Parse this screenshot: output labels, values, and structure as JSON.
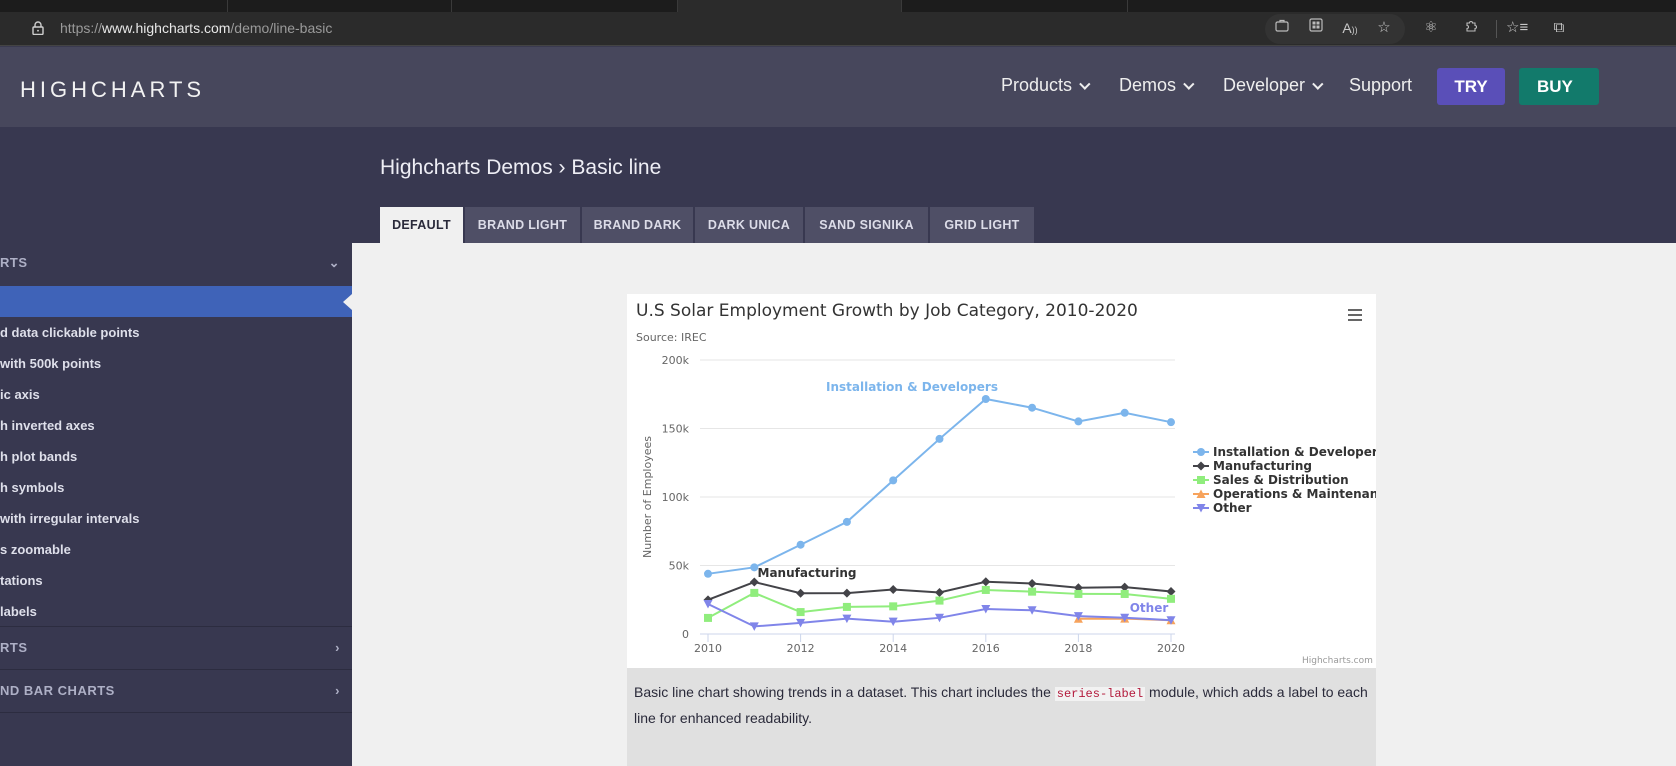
{
  "browser": {
    "url_scheme": "https://",
    "url_host": "www.highcharts.com",
    "url_path": "/demo/line-basic",
    "toolbar_icons": [
      "briefcase-icon",
      "app-grid-icon",
      "read-aloud-icon",
      "add-favorite-icon",
      "atom-icon",
      "extensions-icon",
      "favorites-icon",
      "collections-icon"
    ]
  },
  "header": {
    "logo": "HIGHCHARTS",
    "nav": [
      {
        "label": "Products",
        "has_dropdown": true
      },
      {
        "label": "Demos",
        "has_dropdown": true
      },
      {
        "label": "Developer",
        "has_dropdown": true
      },
      {
        "label": "Support",
        "has_dropdown": false
      }
    ],
    "try_label": "TRY",
    "buy_label": "BUY"
  },
  "sidebar": {
    "sections": [
      {
        "label": "RTS",
        "state": "expanded",
        "arrow": "⌄"
      },
      {
        "label": "RTS",
        "state": "collapsed",
        "arrow": "›"
      },
      {
        "label": "ND BAR CHARTS",
        "state": "collapsed",
        "arrow": "›"
      }
    ],
    "items": [
      {
        "label": "",
        "active": true
      },
      {
        "label": "d data clickable points"
      },
      {
        "label": " with 500k points"
      },
      {
        "label": "ic axis"
      },
      {
        "label": "h inverted axes"
      },
      {
        "label": "h plot bands"
      },
      {
        "label": "h symbols"
      },
      {
        "label": " with irregular intervals"
      },
      {
        "label": "s zoomable"
      },
      {
        "label": "tations"
      },
      {
        "label": "labels"
      }
    ]
  },
  "main": {
    "title": "Highcharts Demos › Basic line",
    "theme_tabs": [
      {
        "label": "DEFAULT",
        "active": true
      },
      {
        "label": "BRAND LIGHT"
      },
      {
        "label": "BRAND DARK"
      },
      {
        "label": "DARK UNICA"
      },
      {
        "label": "SAND SIGNIKA"
      },
      {
        "label": "GRID LIGHT"
      }
    ],
    "description_before": "Basic line chart showing trends in a dataset. This chart includes the ",
    "description_code": "series-label",
    "description_after": " module, which adds a label to each line for enhanced readability.",
    "credits": "Highcharts.com"
  },
  "chart_data": {
    "type": "line",
    "title": "U.S Solar Employment Growth by Job Category, 2010-2020",
    "subtitle": "Source: IREC",
    "xlabel": "",
    "ylabel": "Number of Employees",
    "x": [
      2010,
      2011,
      2012,
      2013,
      2014,
      2015,
      2016,
      2017,
      2018,
      2019,
      2020
    ],
    "x_ticks": [
      "2010",
      "2012",
      "2014",
      "2016",
      "2018",
      "2020"
    ],
    "y_ticks": [
      "0",
      "50k",
      "100k",
      "150k",
      "200k"
    ],
    "ylim": [
      0,
      200000
    ],
    "grid": true,
    "legend_position": "right-middle",
    "series": [
      {
        "name": "Installation & Developers",
        "color": "#7cb5ec",
        "marker": "circle",
        "values": [
          43934,
          48656,
          65165,
          81827,
          112143,
          142383,
          171533,
          165174,
          155157,
          161454,
          154610
        ]
      },
      {
        "name": "Manufacturing",
        "color": "#434348",
        "marker": "diamond",
        "values": [
          24916,
          37941,
          29742,
          29851,
          32490,
          30282,
          38121,
          36885,
          33726,
          34243,
          31050
        ]
      },
      {
        "name": "Sales & Distribution",
        "color": "#90ed7d",
        "marker": "square",
        "values": [
          11744,
          30000,
          16005,
          19771,
          20185,
          24377,
          32147,
          30912,
          29243,
          29213,
          25663
        ]
      },
      {
        "name": "Operations & Maintenance",
        "color": "#f7a35c",
        "marker": "triangle",
        "values": [
          null,
          null,
          null,
          null,
          null,
          null,
          null,
          null,
          11164,
          11218,
          10077
        ]
      },
      {
        "name": "Other",
        "color": "#8085e9",
        "marker": "triangle-down",
        "values": [
          21908,
          5548,
          8105,
          11248,
          8989,
          11816,
          18274,
          17300,
          13053,
          11906,
          10073
        ]
      }
    ],
    "series_labels": [
      {
        "text": "Installation & Developers",
        "series": 0
      },
      {
        "text": "Manufacturing",
        "series": 1
      },
      {
        "text": "Other",
        "series": 4
      }
    ]
  }
}
